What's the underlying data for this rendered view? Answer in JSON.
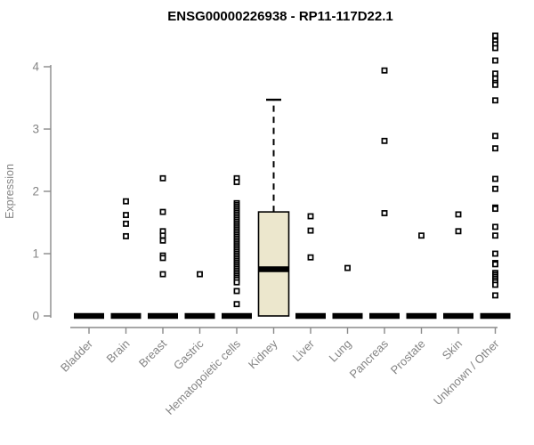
{
  "colors": {
    "background": "#ffffff",
    "title_text": "#000000",
    "axis_line": "#8a8a8a",
    "axis_text": "#848484",
    "mark": "#000000",
    "box_fill": "#ece7cd",
    "box_border": "#000000"
  },
  "chart_data": {
    "type": "boxplot",
    "title": "ENSG00000226938 - RP11-117D22.1",
    "ylabel": "Expression",
    "xlabel": "",
    "yticks": [
      0,
      1,
      2,
      3,
      4
    ],
    "ylim": [
      0,
      4.55
    ],
    "grid": false,
    "legend": "none",
    "categories": [
      "Bladder",
      "Brain",
      "Breast",
      "Gastric",
      "Hematopoietic cells",
      "Kidney",
      "Liver",
      "Lung",
      "Pancreas",
      "Prostate",
      "Skin",
      "Unknown / Other"
    ],
    "boxes": [
      {
        "category": "Bladder",
        "q1": 0,
        "median": 0,
        "q3": 0,
        "whisker_low": 0,
        "whisker_high": 0,
        "outliers": []
      },
      {
        "category": "Brain",
        "q1": 0,
        "median": 0,
        "q3": 0,
        "whisker_low": 0,
        "whisker_high": 0,
        "outliers": [
          1.84,
          1.62,
          1.48,
          1.28
        ]
      },
      {
        "category": "Breast",
        "q1": 0,
        "median": 0,
        "q3": 0,
        "whisker_low": 0,
        "whisker_high": 0,
        "outliers": [
          2.21,
          1.67,
          1.36,
          1.29,
          1.21,
          0.97,
          0.93,
          0.67
        ]
      },
      {
        "category": "Gastric",
        "q1": 0,
        "median": 0,
        "q3": 0,
        "whisker_low": 0,
        "whisker_high": 0,
        "outliers": [
          0.67
        ]
      },
      {
        "category": "Hematopoietic cells",
        "q1": 0,
        "median": 0,
        "q3": 0,
        "whisker_low": 0,
        "whisker_high": 0,
        "outliers": [
          2.21,
          2.15,
          1.81,
          1.78,
          1.75,
          1.72,
          1.69,
          1.66,
          1.63,
          1.6,
          1.57,
          1.54,
          1.51,
          1.48,
          1.45,
          1.42,
          1.39,
          1.36,
          1.33,
          1.3,
          1.27,
          1.24,
          1.21,
          1.18,
          1.15,
          1.12,
          1.09,
          1.06,
          1.03,
          1.0,
          0.97,
          0.94,
          0.91,
          0.88,
          0.85,
          0.82,
          0.79,
          0.76,
          0.73,
          0.7,
          0.67,
          0.64,
          0.61,
          0.58,
          0.54,
          0.4,
          0.19
        ]
      },
      {
        "category": "Kidney",
        "q1": 0,
        "median": 0.75,
        "q3": 1.67,
        "whisker_low": 0,
        "whisker_high": 3.47,
        "outliers": []
      },
      {
        "category": "Liver",
        "q1": 0,
        "median": 0,
        "q3": 0,
        "whisker_low": 0,
        "whisker_high": 0,
        "outliers": [
          1.6,
          1.37,
          0.94
        ]
      },
      {
        "category": "Lung",
        "q1": 0,
        "median": 0,
        "q3": 0,
        "whisker_low": 0,
        "whisker_high": 0,
        "outliers": [
          0.77
        ]
      },
      {
        "category": "Pancreas",
        "q1": 0,
        "median": 0,
        "q3": 0,
        "whisker_low": 0,
        "whisker_high": 0,
        "outliers": [
          3.94,
          2.81,
          1.65
        ]
      },
      {
        "category": "Prostate",
        "q1": 0,
        "median": 0,
        "q3": 0,
        "whisker_low": 0,
        "whisker_high": 0,
        "outliers": [
          1.29
        ]
      },
      {
        "category": "Skin",
        "q1": 0,
        "median": 0,
        "q3": 0,
        "whisker_low": 0,
        "whisker_high": 0,
        "outliers": [
          1.63,
          1.36
        ]
      },
      {
        "category": "Unknown / Other",
        "q1": 0,
        "median": 0,
        "q3": 0,
        "whisker_low": 0,
        "whisker_high": 0,
        "outliers": [
          4.5,
          4.41,
          4.36,
          4.3,
          4.1,
          3.89,
          3.81,
          3.74,
          3.71,
          3.46,
          2.89,
          2.69,
          2.2,
          2.04,
          1.74,
          1.72,
          1.43,
          1.29,
          1.0,
          0.85,
          0.83,
          0.69,
          0.66,
          0.63,
          0.6,
          0.57,
          0.54,
          0.5,
          0.33
        ]
      }
    ]
  }
}
